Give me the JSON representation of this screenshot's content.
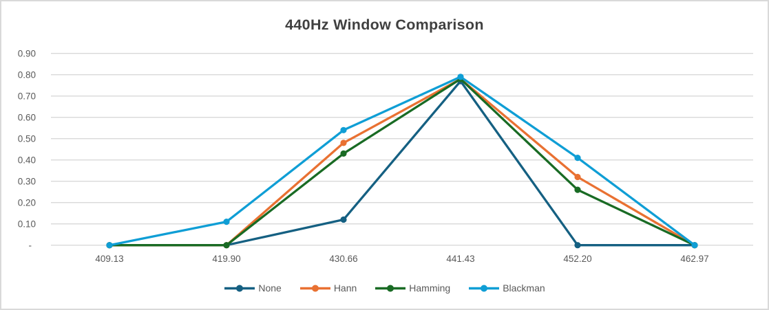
{
  "chart_data": {
    "type": "line",
    "title": "440Hz Window Comparison",
    "categories": [
      "409.13",
      "419.90",
      "430.66",
      "441.43",
      "452.20",
      "462.97"
    ],
    "series": [
      {
        "name": "None",
        "color": "#156082",
        "values": [
          0.0,
          0.0,
          0.12,
          0.77,
          0.0,
          0.0
        ]
      },
      {
        "name": "Hann",
        "color": "#E97132",
        "values": [
          0.0,
          0.0,
          0.48,
          0.78,
          0.32,
          0.0
        ]
      },
      {
        "name": "Hamming",
        "color": "#196B24",
        "values": [
          0.0,
          0.0,
          0.43,
          0.78,
          0.26,
          0.0
        ]
      },
      {
        "name": "Blackman",
        "color": "#0F9ED5",
        "values": [
          0.0,
          0.11,
          0.54,
          0.79,
          0.41,
          0.0
        ]
      }
    ],
    "y_axis": {
      "range": [
        0,
        0.9
      ],
      "ticks": [
        0,
        0.1,
        0.2,
        0.3,
        0.4,
        0.5,
        0.6,
        0.7,
        0.8,
        0.9
      ],
      "tick_labels": [
        "-",
        "0.10",
        "0.20",
        "0.30",
        "0.40",
        "0.50",
        "0.60",
        "0.70",
        "0.80",
        "0.90"
      ]
    },
    "xlabel": "",
    "ylabel": "",
    "grid": true,
    "legend_position": "bottom",
    "marker": "circle",
    "colors": {
      "gridline": "#D9D9D9",
      "axis_text": "#595959",
      "title_text": "#404040",
      "frame_border": "#D9D9D9",
      "background": "#FFFFFF"
    }
  }
}
